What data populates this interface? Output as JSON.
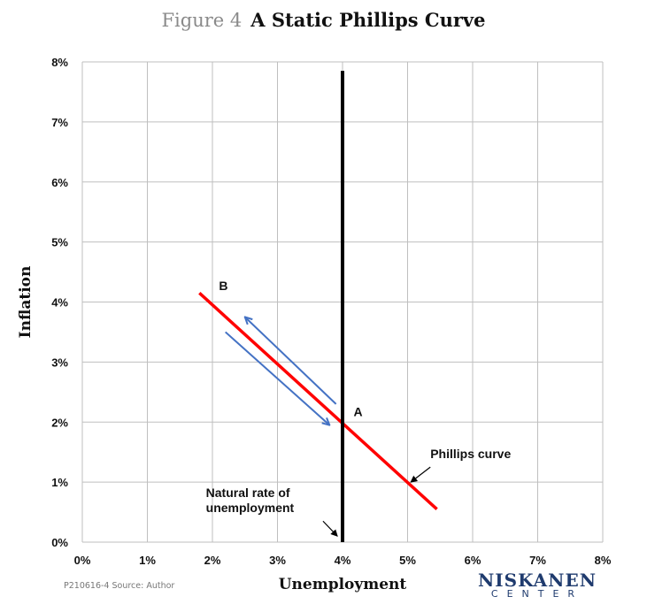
{
  "figure": {
    "number": "Figure 4",
    "title": "A Static Phillips Curve",
    "source_note": "P210616-4 Source: Author"
  },
  "logo": {
    "main": "NISKANEN",
    "sub": "CENTER"
  },
  "colors": {
    "phillips_curve": "#ff0000",
    "natural_rate_line": "#000000",
    "arrows": "#4472c4",
    "grid": "#bfbfbf",
    "logo": "#1f3b6e"
  },
  "chart_data": {
    "type": "line",
    "title": "A Static Phillips Curve",
    "xlabel": "Unemployment",
    "ylabel": "Inflation",
    "xlim": [
      0,
      8
    ],
    "ylim": [
      0,
      8
    ],
    "xticks": [
      "0%",
      "1%",
      "2%",
      "3%",
      "4%",
      "5%",
      "6%",
      "7%",
      "8%"
    ],
    "yticks": [
      "0%",
      "1%",
      "2%",
      "3%",
      "4%",
      "5%",
      "6%",
      "7%",
      "8%"
    ],
    "grid": true,
    "series": [
      {
        "key": "phillips",
        "points": [
          [
            1.8,
            4.15
          ],
          [
            5.45,
            0.55
          ]
        ]
      },
      {
        "key": "natural",
        "points": [
          [
            4.0,
            7.85
          ],
          [
            4.0,
            0.0
          ]
        ]
      }
    ],
    "arrows": [
      {
        "from": [
          3.9,
          2.3
        ],
        "to": [
          2.5,
          3.75
        ]
      },
      {
        "from": [
          2.2,
          3.5
        ],
        "to": [
          3.8,
          1.95
        ]
      }
    ],
    "annotations": [
      {
        "text": "B",
        "at": [
          2.1,
          4.2
        ]
      },
      {
        "text": "A",
        "at": [
          4.17,
          2.1
        ]
      },
      {
        "text": "Phillips curve",
        "at": [
          5.35,
          1.4
        ],
        "pointer_from": [
          5.35,
          1.25
        ],
        "pointer_to": [
          5.05,
          1.0
        ]
      },
      {
        "text": "Natural rate of",
        "at": [
          1.9,
          0.75
        ],
        "pointer_from": [
          3.7,
          0.35
        ],
        "pointer_to": [
          3.92,
          0.1
        ]
      },
      {
        "text": "unemployment",
        "at": [
          1.9,
          0.5
        ]
      }
    ]
  }
}
